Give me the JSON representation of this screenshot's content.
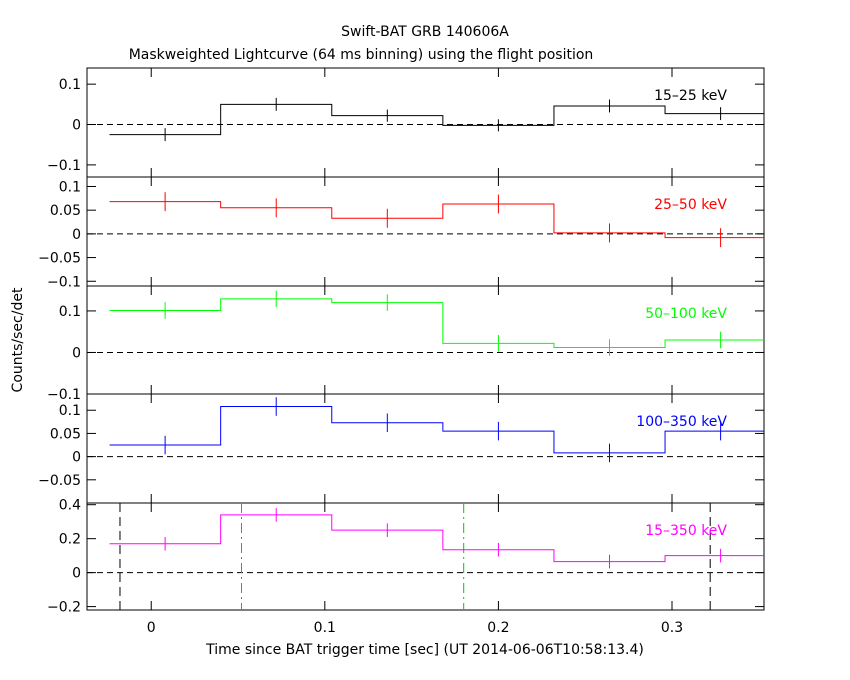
{
  "title_line1": "Swift-BAT GRB 140606A",
  "title_line2": "Maskweighted Lightcurve (64 ms binning) using the flight position",
  "ylabel": "Counts/sec/det",
  "xlabel": "Time since BAT trigger time [sec] (UT 2014-06-06T10:58:13.4)",
  "chart_data": [
    {
      "type": "line",
      "name": "15-25 keV",
      "label": "15–25 keV",
      "color": "#000000",
      "ylim": [
        -0.13,
        0.14
      ],
      "yticks": [
        -0.1,
        0,
        0.1
      ],
      "ytick_labels": [
        "−0.1",
        "0",
        "0.1"
      ],
      "bin_edges": [
        -0.024,
        0.04,
        0.104,
        0.168,
        0.232,
        0.296,
        0.36
      ],
      "values": [
        -0.025,
        0.05,
        0.022,
        -0.002,
        0.046,
        0.027
      ],
      "errors": [
        0.016,
        0.016,
        0.015,
        0.015,
        0.016,
        0.016
      ]
    },
    {
      "type": "line",
      "name": "25-50 keV",
      "label": "25–50 keV",
      "color": "#ff0000",
      "ylim": [
        -0.11,
        0.12
      ],
      "yticks": [
        -0.1,
        -0.05,
        0,
        0.05,
        0.1
      ],
      "ytick_labels": [
        "−0.1",
        "−0.05",
        "0",
        "0.05",
        "0.1"
      ],
      "bin_edges": [
        -0.024,
        0.04,
        0.104,
        0.168,
        0.232,
        0.296,
        0.36
      ],
      "values": [
        0.068,
        0.055,
        0.033,
        0.063,
        0.002,
        -0.008
      ],
      "errors": [
        0.02,
        0.02,
        0.02,
        0.02,
        0.02,
        0.02
      ]
    },
    {
      "type": "line",
      "name": "50-100 keV",
      "label": "50–100 keV",
      "color": "#00ff00",
      "ylim": [
        -0.1,
        0.16
      ],
      "yticks": [
        -0.1,
        0,
        0.1
      ],
      "ytick_labels": [
        "−0.1",
        "0",
        "0.1"
      ],
      "bin_edges": [
        -0.024,
        0.04,
        0.104,
        0.168,
        0.232,
        0.296,
        0.36
      ],
      "values": [
        0.101,
        0.129,
        0.12,
        0.022,
        0.012,
        0.03
      ],
      "errors": [
        0.02,
        0.02,
        0.02,
        0.02,
        0.02,
        0.02
      ]
    },
    {
      "type": "line",
      "name": "100-350 keV",
      "label": "100–350 keV",
      "color": "#0000ff",
      "ylim": [
        -0.1,
        0.135
      ],
      "yticks": [
        -0.05,
        0,
        0.05,
        0.1
      ],
      "ytick_labels": [
        "−0.05",
        "0",
        "0.05",
        "0.1"
      ],
      "bin_edges": [
        -0.024,
        0.04,
        0.104,
        0.168,
        0.232,
        0.296,
        0.36
      ],
      "values": [
        0.025,
        0.108,
        0.073,
        0.055,
        0.008,
        0.055
      ],
      "errors": [
        0.02,
        0.02,
        0.02,
        0.02,
        0.02,
        0.02
      ]
    },
    {
      "type": "line",
      "name": "15-350 keV",
      "label": "15–350 keV",
      "color": "#ff00ff",
      "ylim": [
        -0.22,
        0.41
      ],
      "yticks": [
        -0.2,
        0,
        0.2,
        0.4
      ],
      "ytick_labels": [
        "−0.2",
        "0",
        "0.2",
        "0.4"
      ],
      "bin_edges": [
        -0.024,
        0.04,
        0.104,
        0.168,
        0.232,
        0.296,
        0.36
      ],
      "values": [
        0.17,
        0.34,
        0.25,
        0.135,
        0.065,
        0.1
      ],
      "errors": [
        0.04,
        0.04,
        0.04,
        0.04,
        0.04,
        0.04
      ],
      "vlines_black": [
        -0.018,
        0.322
      ],
      "vlines_green": [
        0.052,
        0.18
      ]
    }
  ],
  "xaxis": {
    "xlim": [
      -0.037,
      0.353
    ],
    "xticks": [
      0,
      0.1,
      0.2,
      0.3
    ],
    "xtick_labels": [
      "0",
      "0.1",
      "0.2",
      "0.3"
    ]
  }
}
